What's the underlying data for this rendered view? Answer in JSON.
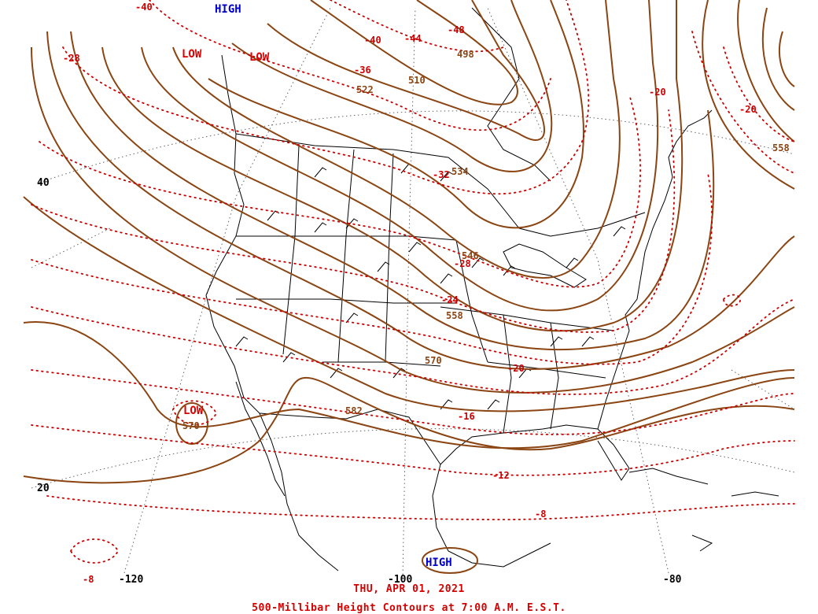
{
  "map": {
    "date_label": "THU, APR 01, 2021",
    "title": "500-Millibar Height Contours at 7:00 A.M. E.S.T.",
    "colors": {
      "height_contour": "#8b4513",
      "temperature_contour": "#cc0000",
      "high_label": "#0000cc",
      "low_label": "#dd0000",
      "basemap": "#000000",
      "graticule": "#555555"
    },
    "pressure_centers": [
      {
        "type": "HIGH",
        "label": "HIGH",
        "name": "high-northwest"
      },
      {
        "type": "LOW",
        "label": "LOW",
        "name": "low-pacific-northwest-west"
      },
      {
        "type": "LOW",
        "label": "LOW",
        "name": "low-pacific-northwest-east"
      },
      {
        "type": "LOW",
        "label": "LOW",
        "name": "low-baja"
      },
      {
        "type": "HIGH",
        "label": "HIGH",
        "name": "high-mexico"
      }
    ],
    "height_labels": [
      "522",
      "510",
      "498",
      "534",
      "546",
      "558",
      "570",
      "582",
      "570",
      "558"
    ],
    "temperature_labels": [
      "-40",
      "-44",
      "-48",
      "-40",
      "-36",
      "-28",
      "-32",
      "-28",
      "-24",
      "-20",
      "-20",
      "-20",
      "-16",
      "-12",
      "-8",
      "-8"
    ],
    "latitude_labels": [
      "40",
      "20"
    ],
    "longitude_labels": [
      "-120",
      "-100",
      "-80"
    ]
  }
}
